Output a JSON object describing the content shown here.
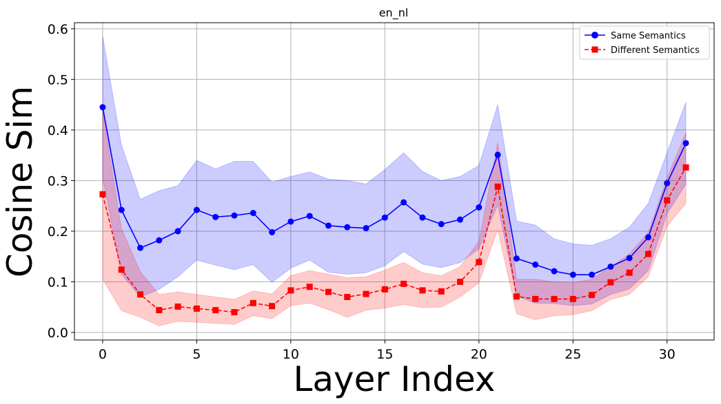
{
  "chart_data": {
    "type": "line",
    "title": "en_nl",
    "xlabel": "Layer Index",
    "ylabel": "Cosine Sim",
    "xlim": [
      -1.5,
      32.5
    ],
    "ylim": [
      -0.015,
      0.612
    ],
    "xticks": [
      0,
      5,
      10,
      15,
      20,
      25,
      30
    ],
    "yticks": [
      0.0,
      0.1,
      0.2,
      0.3,
      0.4,
      0.5,
      0.6
    ],
    "ytick_labels": [
      "0.0",
      "0.1",
      "0.2",
      "0.3",
      "0.4",
      "0.5",
      "0.6"
    ],
    "grid": true,
    "legend_position": "top-right",
    "x": [
      0,
      1,
      2,
      3,
      4,
      5,
      6,
      7,
      8,
      9,
      10,
      11,
      12,
      13,
      14,
      15,
      16,
      17,
      18,
      19,
      20,
      21,
      22,
      23,
      24,
      25,
      26,
      27,
      28,
      29,
      30,
      31
    ],
    "series": [
      {
        "name": "Same Semantics",
        "color": "#0000ff",
        "marker": "circle",
        "linestyle": "solid",
        "values": [
          0.445,
          0.242,
          0.167,
          0.182,
          0.2,
          0.242,
          0.228,
          0.231,
          0.236,
          0.198,
          0.219,
          0.23,
          0.211,
          0.208,
          0.206,
          0.227,
          0.257,
          0.227,
          0.214,
          0.223,
          0.247,
          0.351,
          0.146,
          0.134,
          0.121,
          0.114,
          0.114,
          0.13,
          0.147,
          0.188,
          0.295,
          0.374
        ],
        "band_upper": [
          0.585,
          0.37,
          0.263,
          0.28,
          0.29,
          0.34,
          0.323,
          0.338,
          0.338,
          0.297,
          0.308,
          0.317,
          0.303,
          0.3,
          0.293,
          0.322,
          0.355,
          0.318,
          0.3,
          0.308,
          0.33,
          0.45,
          0.22,
          0.212,
          0.185,
          0.175,
          0.172,
          0.185,
          0.208,
          0.255,
          0.355,
          0.455
        ],
        "band_lower": [
          0.305,
          0.115,
          0.07,
          0.085,
          0.11,
          0.143,
          0.133,
          0.124,
          0.134,
          0.099,
          0.127,
          0.143,
          0.119,
          0.115,
          0.118,
          0.132,
          0.16,
          0.135,
          0.128,
          0.138,
          0.165,
          0.252,
          0.072,
          0.058,
          0.057,
          0.053,
          0.056,
          0.075,
          0.086,
          0.122,
          0.235,
          0.293
        ]
      },
      {
        "name": "Different Semantics",
        "color": "#ff0000",
        "marker": "square",
        "linestyle": "dashed",
        "values": [
          0.273,
          0.124,
          0.075,
          0.044,
          0.051,
          0.047,
          0.044,
          0.04,
          0.058,
          0.052,
          0.083,
          0.09,
          0.08,
          0.07,
          0.076,
          0.085,
          0.096,
          0.083,
          0.081,
          0.1,
          0.139,
          0.288,
          0.071,
          0.066,
          0.066,
          0.066,
          0.074,
          0.099,
          0.118,
          0.155,
          0.261,
          0.326
        ],
        "band_upper": [
          0.44,
          0.205,
          0.12,
          0.075,
          0.08,
          0.075,
          0.07,
          0.065,
          0.082,
          0.076,
          0.112,
          0.122,
          0.115,
          0.108,
          0.11,
          0.123,
          0.138,
          0.118,
          0.112,
          0.13,
          0.18,
          0.375,
          0.105,
          0.105,
          0.1,
          0.098,
          0.105,
          0.13,
          0.155,
          0.198,
          0.305,
          0.395
        ],
        "band_lower": [
          0.105,
          0.043,
          0.03,
          0.013,
          0.022,
          0.02,
          0.018,
          0.016,
          0.033,
          0.027,
          0.053,
          0.058,
          0.045,
          0.03,
          0.044,
          0.048,
          0.055,
          0.049,
          0.05,
          0.07,
          0.098,
          0.203,
          0.037,
          0.025,
          0.033,
          0.035,
          0.043,
          0.065,
          0.075,
          0.11,
          0.21,
          0.255
        ]
      }
    ]
  }
}
